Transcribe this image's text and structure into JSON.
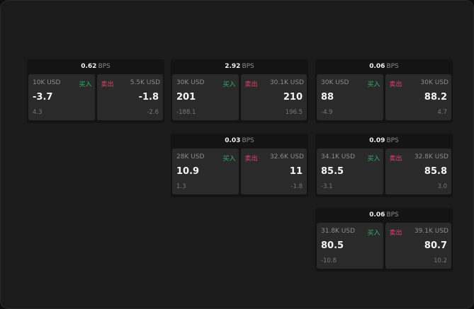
{
  "unit_label": "BPS",
  "buy_label": "买入",
  "sell_label": "卖出",
  "colors": {
    "buy": "#2fb069",
    "sell": "#e0436b"
  },
  "panels": [
    {
      "spread": "0.62",
      "bid_size": "10K USD",
      "bid": "-3.7",
      "bid_change": "4.3",
      "ask_size": "5.5K USD",
      "ask": "-1.8",
      "ask_change": "-2.6"
    },
    {
      "spread": "2.92",
      "bid_size": "30K USD",
      "bid": "201",
      "bid_change": "-188.1",
      "ask_size": "30.1K USD",
      "ask": "210",
      "ask_change": "196.5"
    },
    {
      "spread": "0.06",
      "bid_size": "30K USD",
      "bid": "88",
      "bid_change": "-4.9",
      "ask_size": "30K USD",
      "ask": "88.2",
      "ask_change": "4.7"
    },
    {
      "spread": "0.03",
      "bid_size": "28K USD",
      "bid": "10.9",
      "bid_change": "1.3",
      "ask_size": "32.6K USD",
      "ask": "11",
      "ask_change": "-1.8"
    },
    {
      "spread": "0.09",
      "bid_size": "34.1K USD",
      "bid": "85.5",
      "bid_change": "-3.1",
      "ask_size": "32.8K USD",
      "ask": "85.8",
      "ask_change": "3.0"
    },
    {
      "spread": "0.06",
      "bid_size": "31.8K USD",
      "bid": "80.5",
      "bid_change": "-10.8",
      "ask_size": "39.1K USD",
      "ask": "80.7",
      "ask_change": "10.2"
    }
  ]
}
